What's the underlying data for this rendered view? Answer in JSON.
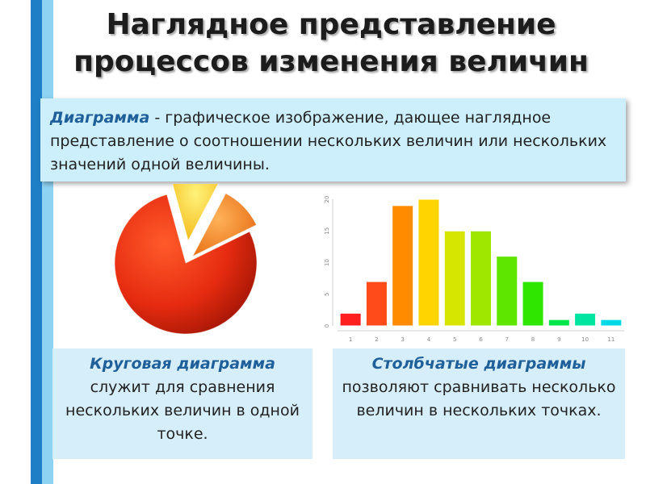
{
  "title": {
    "line1": "Наглядное представление",
    "line2": "процессов изменения величин"
  },
  "definition": {
    "term": "Диаграмма",
    "text": " - графическое изображение, дающее наглядное представление о соотношении нескольких величин или нескольких значений одной величины."
  },
  "pie_caption": {
    "title": "Круговая диаграмма",
    "text": "служит для сравнения нескольких величин в одной точке."
  },
  "bar_caption": {
    "title": "Столбчатые диаграммы",
    "text": "позволяют сравнивать несколько величин в нескольких точках."
  },
  "colors": {
    "stripe_dark": "#1f7fc6",
    "stripe_light": "#8fd3f3",
    "definition_bg": "#cdeefb",
    "caption_bg": "#d6eef9",
    "term_color": "#1f5f9a"
  },
  "chart_data": [
    {
      "type": "pie",
      "slices": [
        {
          "value": 78,
          "color": "#e62b10"
        },
        {
          "value": 12,
          "color": "#f7d21f"
        },
        {
          "value": 10,
          "color": "#f58a1f"
        }
      ]
    },
    {
      "type": "bar",
      "categories": [
        "1",
        "2",
        "3",
        "4",
        "5",
        "6",
        "7",
        "8",
        "9",
        "10",
        "11"
      ],
      "values": [
        2,
        7,
        19,
        20,
        15,
        15,
        11,
        7,
        1,
        2,
        1
      ],
      "colors": [
        "#ff1f1f",
        "#ff4a1a",
        "#ff8c00",
        "#ffd400",
        "#d6e600",
        "#9fe600",
        "#5ee600",
        "#2ee600",
        "#00e64d",
        "#00e6a0",
        "#00d9e6"
      ],
      "ylim": [
        0,
        20
      ],
      "yticks": [
        0,
        5,
        10,
        15,
        20
      ],
      "xlabel": "",
      "ylabel": ""
    }
  ]
}
